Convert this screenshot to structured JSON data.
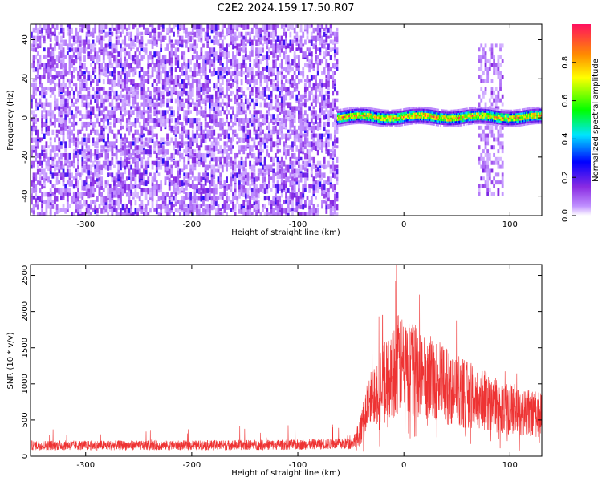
{
  "title": "C2E2.2024.159.17.50.R07",
  "colors": {
    "snr_line": "#ee3333",
    "spectrogram_noise": "#8a2be2"
  },
  "chart_data": [
    {
      "type": "heatmap",
      "xlabel": "Height of straight line (km)",
      "ylabel": "Frequency (Hz)",
      "xlim": [
        -352,
        130
      ],
      "ylim": [
        -50,
        48
      ],
      "xticks": [
        -300,
        -200,
        -100,
        0,
        100
      ],
      "yticks": [
        -40,
        -20,
        0,
        20,
        40
      ],
      "grid": false,
      "colorbar": {
        "label": "Normalized spectral amplitude",
        "range": [
          0,
          1
        ],
        "ticks": [
          0.0,
          0.2,
          0.4,
          0.6,
          0.8
        ],
        "colormap": "rainbow"
      },
      "features": [
        {
          "kind": "broadband_noise",
          "x_range": [
            -352,
            -63
          ],
          "y_range": [
            -50,
            48
          ],
          "amplitude": 0.15
        },
        {
          "kind": "narrow_signal_band",
          "x_range": [
            -63,
            130
          ],
          "center_frequency": 0,
          "bandwidth": 6,
          "peak_amplitude": 0.95
        },
        {
          "kind": "spread_region",
          "x_range": [
            70,
            93
          ],
          "y_range": [
            -40,
            38
          ],
          "amplitude": 0.1
        }
      ]
    },
    {
      "type": "line",
      "xlabel": "Height of straight line (km)",
      "ylabel": "SNR (10 * v/v)",
      "xlim": [
        -352,
        130
      ],
      "ylim": [
        0,
        2650
      ],
      "xticks": [
        -300,
        -200,
        -100,
        0,
        100
      ],
      "yticks": [
        0,
        500,
        1000,
        1500,
        2000,
        2500
      ],
      "grid": false,
      "envelope": {
        "x": [
          -352,
          -300,
          -200,
          -100,
          -50,
          -42,
          -35,
          -25,
          -15,
          -10,
          -8,
          0,
          10,
          30,
          50,
          70,
          90,
          110,
          130
        ],
        "y": [
          150,
          150,
          150,
          160,
          175,
          300,
          650,
          950,
          1050,
          1150,
          1300,
          1250,
          1200,
          1050,
          900,
          800,
          700,
          620,
          560
        ]
      },
      "peaks": [
        {
          "x": -7,
          "y": 2650
        },
        {
          "x": -20,
          "y": 1950
        },
        {
          "x": -30,
          "y": 1750
        }
      ]
    }
  ]
}
